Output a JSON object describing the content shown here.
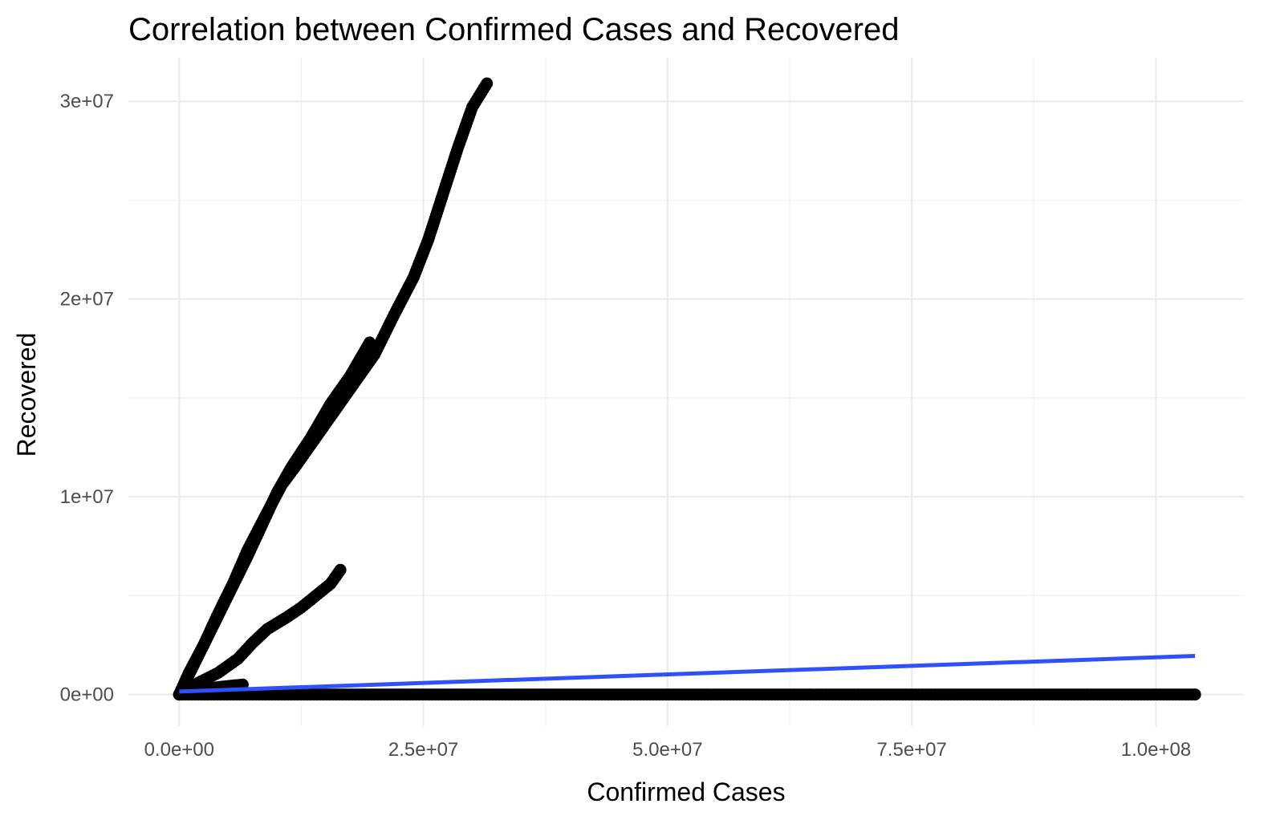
{
  "chart_data": {
    "type": "scatter",
    "title": "Correlation between Confirmed Cases and Recovered",
    "xlabel": "Confirmed Cases",
    "ylabel": "Recovered",
    "xlim": [
      -5200000,
      109000000
    ],
    "ylim": [
      -1600000,
      32200000
    ],
    "x_ticks": [
      0,
      25000000,
      50000000,
      75000000,
      100000000
    ],
    "x_tick_labels": [
      "0.0e+00",
      "2.5e+07",
      "5.0e+07",
      "7.5e+07",
      "1.0e+08"
    ],
    "y_ticks": [
      0,
      10000000,
      20000000,
      30000000
    ],
    "y_tick_labels": [
      "0e+00",
      "1e+07",
      "2e+07",
      "3e+07"
    ],
    "grid": true,
    "colors": {
      "points": "#000000",
      "trend": "#3050f8",
      "grid": "#ebebeb"
    },
    "series": [
      {
        "kind": "points",
        "curves": [
          [
            [
              0,
              0
            ],
            [
              1000000,
              1000000
            ],
            [
              2500000,
              2500000
            ],
            [
              4000000,
              4100000
            ],
            [
              5500000,
              5600000
            ],
            [
              7000000,
              7300000
            ],
            [
              9000000,
              9200000
            ],
            [
              10500000,
              10600000
            ],
            [
              12000000,
              11600000
            ],
            [
              14000000,
              13000000
            ],
            [
              16000000,
              14400000
            ],
            [
              18000000,
              15800000
            ],
            [
              20000000,
              17200000
            ],
            [
              22000000,
              19200000
            ],
            [
              24000000,
              21100000
            ],
            [
              25500000,
              23000000
            ],
            [
              27000000,
              25300000
            ],
            [
              28500000,
              27600000
            ],
            [
              30000000,
              29700000
            ],
            [
              31500000,
              30900000
            ]
          ],
          [
            [
              0,
              0
            ],
            [
              1000000,
              1100000
            ],
            [
              2500000,
              2500000
            ],
            [
              4000000,
              4000000
            ],
            [
              5500000,
              5500000
            ],
            [
              7000000,
              7000000
            ],
            [
              8500000,
              8600000
            ],
            [
              10000000,
              10200000
            ],
            [
              11500000,
              11500000
            ],
            [
              13500000,
              13000000
            ],
            [
              15500000,
              14700000
            ],
            [
              17500000,
              16100000
            ],
            [
              19500000,
              17800000
            ]
          ],
          [
            [
              0,
              0
            ],
            [
              2000000,
              600000
            ],
            [
              4000000,
              1100000
            ],
            [
              6000000,
              1800000
            ],
            [
              7500000,
              2600000
            ],
            [
              9000000,
              3300000
            ],
            [
              11000000,
              3900000
            ],
            [
              12500000,
              4400000
            ],
            [
              14000000,
              5000000
            ],
            [
              15500000,
              5600000
            ],
            [
              16500000,
              6300000
            ]
          ],
          [
            [
              0,
              0
            ],
            [
              2000000,
              250000
            ],
            [
              4500000,
              400000
            ],
            [
              6500000,
              500000
            ]
          ],
          [
            [
              0,
              0
            ],
            [
              20000000,
              0
            ],
            [
              40000000,
              0
            ],
            [
              60000000,
              0
            ],
            [
              80000000,
              0
            ],
            [
              104000000,
              0
            ]
          ]
        ]
      },
      {
        "kind": "line",
        "name": "",
        "points": [
          [
            0,
            150000
          ],
          [
            104000000,
            1950000
          ]
        ]
      }
    ]
  }
}
